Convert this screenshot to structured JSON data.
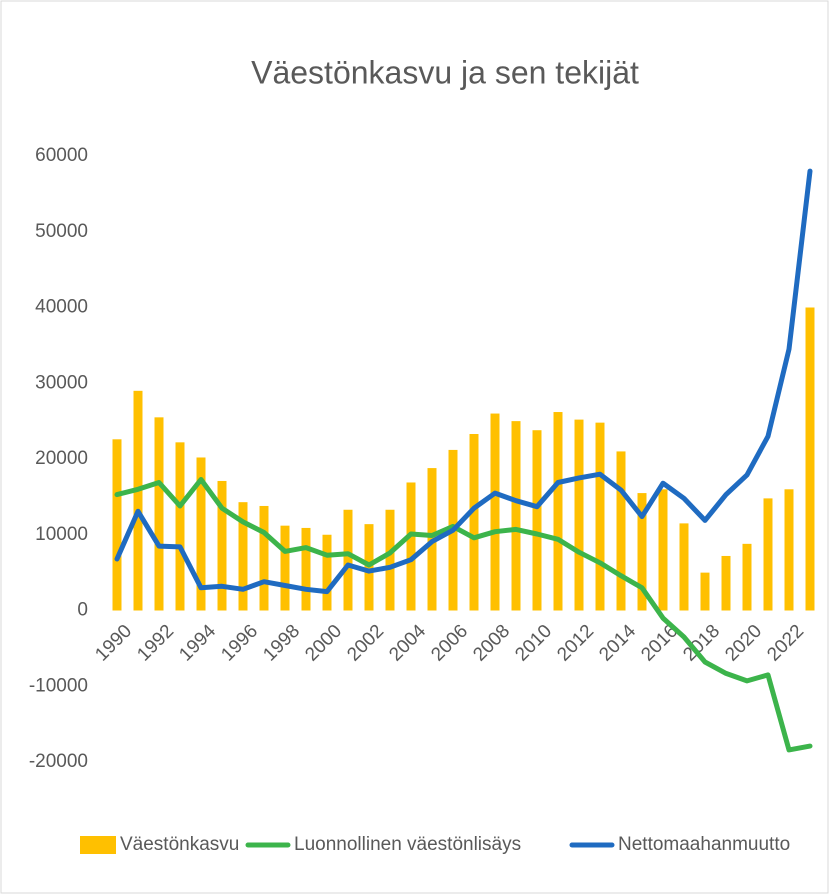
{
  "chart_data": {
    "type": "combo",
    "title": "Väestönkasvu ja sen tekijät",
    "categories": [
      "1990",
      null,
      "1992",
      null,
      "1994",
      null,
      "1996",
      null,
      "1998",
      null,
      "2000",
      null,
      "2002",
      null,
      "2004",
      null,
      "2006",
      null,
      "2008",
      null,
      "2010",
      null,
      "2012",
      null,
      "2014",
      null,
      "2016",
      null,
      "2018",
      null,
      "2020",
      null,
      "2022",
      null
    ],
    "series": [
      {
        "name": "Väestönkasvu",
        "type": "bar",
        "color": "#ffc000",
        "values": [
          22600,
          29000,
          25500,
          22200,
          20200,
          17100,
          14300,
          13800,
          11200,
          10900,
          10000,
          13300,
          11400,
          13300,
          16900,
          18800,
          21200,
          23300,
          26000,
          25000,
          23800,
          26200,
          25200,
          24800,
          21000,
          15500,
          16000,
          11500,
          5000,
          7200,
          8800,
          14800,
          16000,
          40000
        ]
      },
      {
        "name": "Luonnollinen väestönlisäys",
        "type": "line",
        "color": "#3cb44b",
        "values": [
          15300,
          16000,
          16900,
          13800,
          17300,
          13500,
          11700,
          10300,
          7800,
          8300,
          7300,
          7500,
          6000,
          7600,
          10100,
          9900,
          11100,
          9600,
          10400,
          10700,
          10100,
          9400,
          7700,
          6300,
          4600,
          3000,
          -1000,
          -3500,
          -6800,
          -8300,
          -9300,
          -8500,
          -18400,
          -17900
        ]
      },
      {
        "name": "Nettomaahanmuutto",
        "type": "line",
        "color": "#1f6bc1",
        "values": [
          6800,
          13100,
          8500,
          8400,
          3000,
          3200,
          2800,
          3800,
          3300,
          2800,
          2500,
          6000,
          5200,
          5700,
          6700,
          9100,
          10600,
          13500,
          15500,
          14500,
          13700,
          16900,
          17500,
          18000,
          15900,
          12400,
          16800,
          14800,
          11900,
          15300,
          17900,
          23000,
          34500,
          58000
        ]
      }
    ],
    "ylim": [
      -20000,
      60000
    ],
    "yticks": [
      -20000,
      -10000,
      0,
      10000,
      20000,
      30000,
      40000,
      50000,
      60000
    ],
    "grid": false,
    "legend": "bottom"
  }
}
